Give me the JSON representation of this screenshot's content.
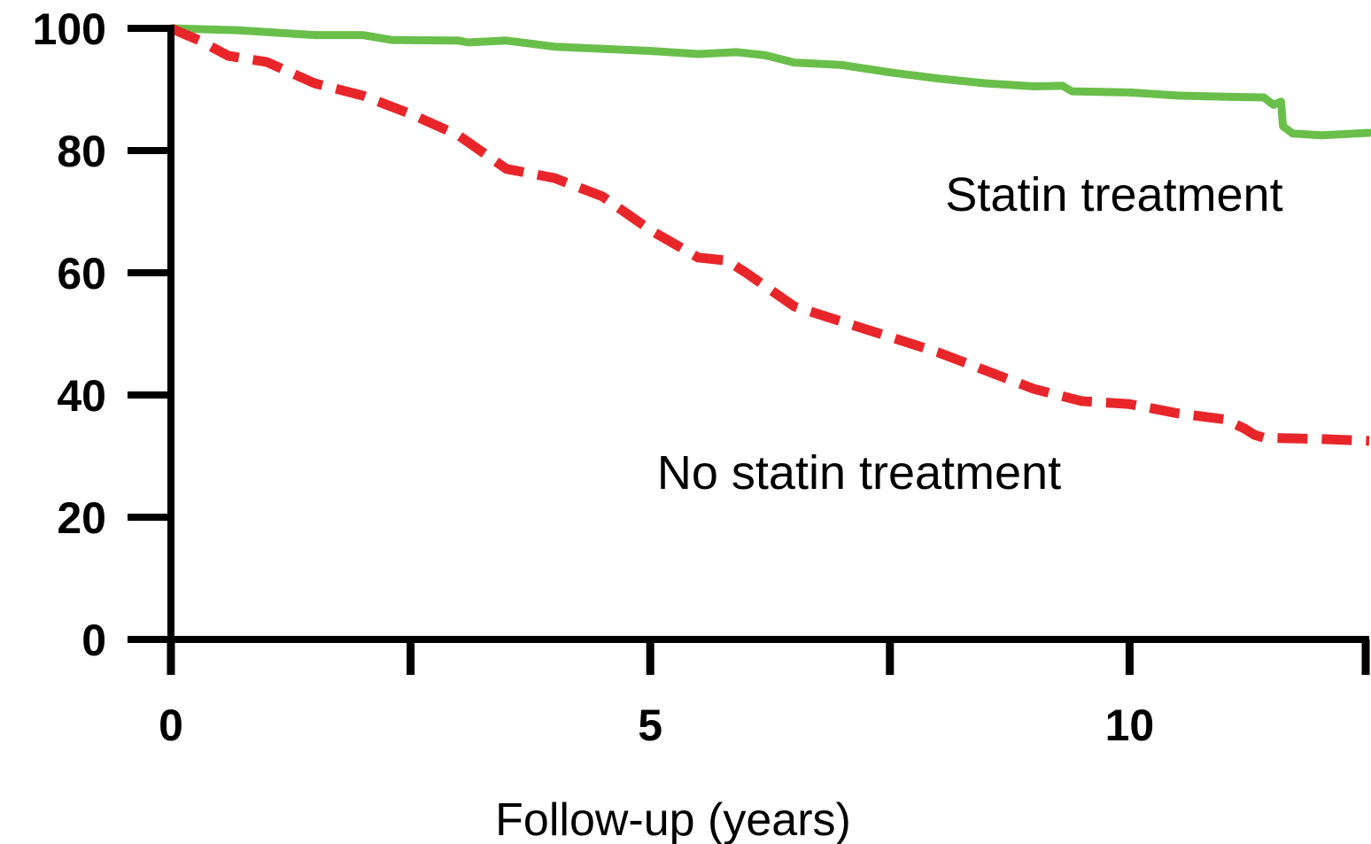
{
  "chart_data": {
    "type": "line",
    "title": "",
    "xlabel": "Follow-up (years)",
    "ylabel": "",
    "xlim": [
      0,
      12.5
    ],
    "ylim": [
      0,
      100
    ],
    "x_ticks": [
      0,
      5,
      10
    ],
    "x_minor_ticks": [
      2.5,
      7.5,
      12.5
    ],
    "y_ticks": [
      0,
      20,
      40,
      60,
      80,
      100
    ],
    "grid": false,
    "legend": "none",
    "series": [
      {
        "name": "Statin treatment",
        "color": "#6abf4b",
        "style": "solid",
        "x": [
          0,
          0.7,
          1.5,
          2.0,
          2.3,
          3.0,
          3.1,
          3.5,
          4.0,
          5.0,
          5.5,
          5.9,
          6.2,
          6.5,
          7.0,
          7.5,
          8.0,
          8.5,
          9.0,
          9.3,
          9.4,
          10.0,
          10.5,
          11.0,
          11.4,
          11.5,
          11.58,
          11.6,
          11.7,
          12.0,
          12.5
        ],
        "values": [
          100,
          99.7,
          98.9,
          98.9,
          98.1,
          98.0,
          97.7,
          98.0,
          97.0,
          96.3,
          95.8,
          96.1,
          95.6,
          94.4,
          94.0,
          92.8,
          91.8,
          91.0,
          90.5,
          90.6,
          89.7,
          89.5,
          89.0,
          88.8,
          88.7,
          87.5,
          88.0,
          84.0,
          82.8,
          82.5,
          82.9
        ]
      },
      {
        "name": "No statin treatment",
        "color": "#e8262a",
        "style": "dashed",
        "x": [
          0,
          0.3,
          0.6,
          1.0,
          1.5,
          2.0,
          2.5,
          3.0,
          3.5,
          4.0,
          4.5,
          5.0,
          5.5,
          5.8,
          6.0,
          6.5,
          7.0,
          7.5,
          8.0,
          8.5,
          9.0,
          9.5,
          10.0,
          10.5,
          11.0,
          11.2,
          11.3,
          11.4,
          12.0,
          12.5
        ],
        "values": [
          100,
          98.0,
          95.5,
          94.5,
          91.0,
          89.0,
          86.0,
          82.5,
          77.0,
          75.5,
          72.5,
          67.0,
          62.5,
          62.0,
          60.0,
          54.5,
          52.0,
          49.5,
          47.0,
          44.0,
          41.0,
          39.0,
          38.5,
          37.0,
          36.0,
          34.5,
          33.5,
          33.0,
          32.8,
          32.5
        ]
      }
    ]
  },
  "annotations": {
    "statin_label": "Statin treatment",
    "no_statin_label": "No statin treatment"
  }
}
